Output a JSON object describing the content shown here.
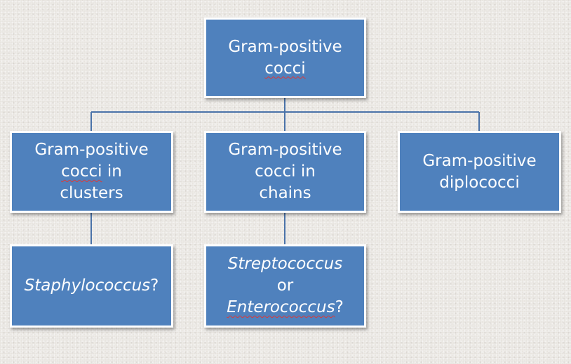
{
  "diagram": {
    "root": {
      "line1": "Gram-positive",
      "line2": "cocci"
    },
    "clusters": {
      "line1": "Gram-positive",
      "line2a": "cocci",
      "line2b": " in",
      "line3": "clusters"
    },
    "chains": {
      "line1": "Gram-positive",
      "line2": "cocci in",
      "line3": "chains"
    },
    "diplococci": {
      "line1": "Gram-positive",
      "line2": "diplococci"
    },
    "staph": {
      "name": "Staphylococcus",
      "suffix": "?"
    },
    "strep": {
      "name1": "Streptococcus",
      "conj": "or",
      "name2": "Enterococcus",
      "suffix": "?"
    }
  },
  "colors": {
    "box_fill": "#4f81bd",
    "box_border": "#ffffff",
    "connector": "#4a72a8",
    "text": "#ffffff"
  }
}
